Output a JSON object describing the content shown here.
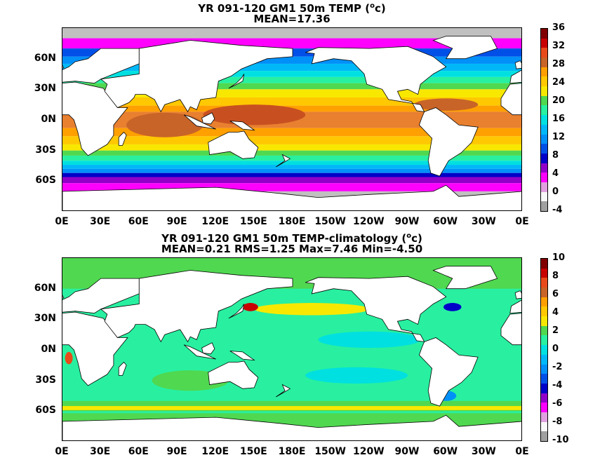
{
  "panels": [
    {
      "id": "top",
      "title_line1": "YR 091-120 GM1 50m TEMP (",
      "title_sup": "o",
      "title_line1_end": "c)",
      "title_line2": "MEAN=17.36",
      "lat_ticks": [
        "60N",
        "30N",
        "0N",
        "30S",
        "60S"
      ],
      "lon_ticks": [
        "0E",
        "30E",
        "60E",
        "90E",
        "120E",
        "150E",
        "180E",
        "150W",
        "120W",
        "90W",
        "60W",
        "30W",
        "0E"
      ],
      "colorbar": {
        "levels": [
          "36",
          "32",
          "28",
          "24",
          "20",
          "16",
          "12",
          "8",
          "4",
          "0",
          "-4"
        ],
        "colors": [
          "#800000",
          "#c80000",
          "#e84a1a",
          "#c86428",
          "#ffa000",
          "#ffc800",
          "#f8e800",
          "#50d850",
          "#28f0a0",
          "#00e0e0",
          "#00b8f8",
          "#0090f8",
          "#0050e8",
          "#0000c8",
          "#9000c8",
          "#ff00ff",
          "#e0a0e0",
          "#f8f8f8",
          "#a0a0a0"
        ]
      },
      "bands": [
        {
          "lat_from": 90,
          "lat_to": 80,
          "color": "#c0c0c0"
        },
        {
          "lat_from": 80,
          "lat_to": 70,
          "color": "#ff00ff"
        },
        {
          "lat_from": 70,
          "lat_to": 62,
          "color": "#0050e8"
        },
        {
          "lat_from": 62,
          "lat_to": 55,
          "color": "#0090f8"
        },
        {
          "lat_from": 55,
          "lat_to": 48,
          "color": "#00b8f8"
        },
        {
          "lat_from": 48,
          "lat_to": 42,
          "color": "#00e0e0"
        },
        {
          "lat_from": 42,
          "lat_to": 36,
          "color": "#28f0a0"
        },
        {
          "lat_from": 36,
          "lat_to": 30,
          "color": "#50d850"
        },
        {
          "lat_from": 30,
          "lat_to": 22,
          "color": "#f8e800"
        },
        {
          "lat_from": 22,
          "lat_to": 14,
          "color": "#ffc800"
        },
        {
          "lat_from": 14,
          "lat_to": 8,
          "color": "#ffa000"
        },
        {
          "lat_from": 8,
          "lat_to": -8,
          "color": "#e88030"
        },
        {
          "lat_from": -8,
          "lat_to": -16,
          "color": "#ffa000"
        },
        {
          "lat_from": -16,
          "lat_to": -24,
          "color": "#ffc800"
        },
        {
          "lat_from": -24,
          "lat_to": -30,
          "color": "#f8e800"
        },
        {
          "lat_from": -30,
          "lat_to": -35,
          "color": "#50d850"
        },
        {
          "lat_from": -35,
          "lat_to": -40,
          "color": "#28f0a0"
        },
        {
          "lat_from": -40,
          "lat_to": -44,
          "color": "#00e0e0"
        },
        {
          "lat_from": -44,
          "lat_to": -48,
          "color": "#00b8f8"
        },
        {
          "lat_from": -48,
          "lat_to": -52,
          "color": "#0090f8"
        },
        {
          "lat_from": -52,
          "lat_to": -56,
          "color": "#0000c8"
        },
        {
          "lat_from": -56,
          "lat_to": -62,
          "color": "#9000c8"
        },
        {
          "lat_from": -62,
          "lat_to": -70,
          "color": "#ff00ff"
        },
        {
          "lat_from": -70,
          "lat_to": -90,
          "color": "#c0c0c0"
        }
      ],
      "patches": [
        {
          "lon": 150,
          "lat": 5,
          "rx": 40,
          "ry": 10,
          "color": "#c85020"
        },
        {
          "lon": 80,
          "lat": -5,
          "rx": 30,
          "ry": 12,
          "color": "#c86428"
        },
        {
          "lon": 300,
          "lat": 15,
          "rx": 25,
          "ry": 6,
          "color": "#c86428"
        }
      ]
    },
    {
      "id": "bottom",
      "title_line1": "YR 091-120 GM1 50m TEMP-climatology (",
      "title_sup": "o",
      "title_line1_end": "c)",
      "title_line2": "MEAN=0.21   RMS=1.25   Max=7.46   Min=-4.50",
      "lat_ticks": [
        "60N",
        "30N",
        "0N",
        "30S",
        "60S"
      ],
      "lon_ticks": [
        "0E",
        "30E",
        "60E",
        "90E",
        "120E",
        "150E",
        "180E",
        "150W",
        "120W",
        "90W",
        "60W",
        "30W",
        "0E"
      ],
      "colorbar": {
        "levels": [
          "10",
          "8",
          "6",
          "4",
          "2",
          "0",
          "-2",
          "-4",
          "-6",
          "-8",
          "-10"
        ],
        "colors": [
          "#800000",
          "#c80000",
          "#e84a1a",
          "#c86428",
          "#ffa000",
          "#ffc800",
          "#f8e800",
          "#50d850",
          "#28f0a0",
          "#00e0e0",
          "#00b8f8",
          "#0090f8",
          "#0050e8",
          "#0000c8",
          "#9000c8",
          "#ff00ff",
          "#e0a0e0",
          "#f8f8f8",
          "#a0a0a0"
        ]
      },
      "bands": [
        {
          "lat_from": 90,
          "lat_to": -90,
          "color": "#28f0a0"
        },
        {
          "lat_from": 90,
          "lat_to": 60,
          "color": "#50d850"
        },
        {
          "lat_from": -50,
          "lat_to": -60,
          "color": "#50d850"
        },
        {
          "lat_from": -55,
          "lat_to": -59,
          "color": "#f8e800"
        },
        {
          "lat_from": -62,
          "lat_to": -90,
          "color": "#50d850"
        }
      ],
      "patches": [
        {
          "lon": 195,
          "lat": 40,
          "rx": 45,
          "ry": 6,
          "color": "#f8e800"
        },
        {
          "lon": 147,
          "lat": 42,
          "rx": 6,
          "ry": 4,
          "color": "#c80000"
        },
        {
          "lon": 305,
          "lat": 42,
          "rx": 7,
          "ry": 4,
          "color": "#0000c8"
        },
        {
          "lon": 5,
          "lat": -8,
          "rx": 3,
          "ry": 6,
          "color": "#e84a1a"
        },
        {
          "lon": 300,
          "lat": -45,
          "rx": 8,
          "ry": 5,
          "color": "#0090f8"
        },
        {
          "lon": 240,
          "lat": 10,
          "rx": 40,
          "ry": 8,
          "color": "#00e0e0"
        },
        {
          "lon": 230,
          "lat": -25,
          "rx": 40,
          "ry": 8,
          "color": "#00e0e0"
        },
        {
          "lon": 100,
          "lat": -30,
          "rx": 30,
          "ry": 10,
          "color": "#50d850"
        }
      ]
    }
  ]
}
